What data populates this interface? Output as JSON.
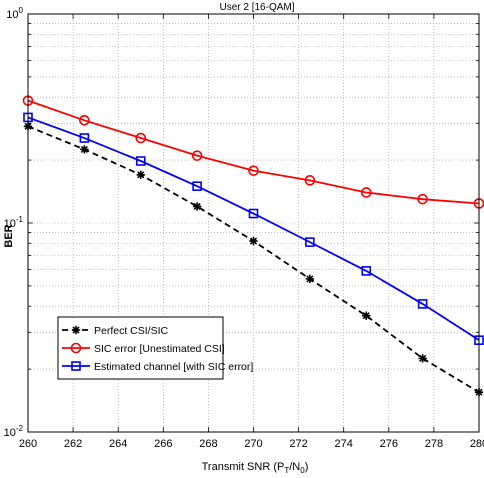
{
  "chart_data": {
    "type": "line",
    "title": "User 2 [16-QAM]",
    "xlabel": "Transmit SNR (P",
    "xlabel_sub1": "T",
    "xlabel_mid": "/N",
    "xlabel_sub2": "0",
    "xlabel_end": ")",
    "ylabel": "BER",
    "xlim": [
      260,
      280
    ],
    "ylim": [
      0.01,
      1
    ],
    "yscale": "log",
    "grid": true,
    "legend_position": "lower-left",
    "x_ticks": [
      "260",
      "262",
      "264",
      "266",
      "268",
      "270",
      "272",
      "274",
      "276",
      "278",
      "280"
    ],
    "y_ticks": [
      {
        "base": "10",
        "exp": "0",
        "value": 1
      },
      {
        "base": "10",
        "exp": "-1",
        "value": 0.1
      },
      {
        "base": "10",
        "exp": "-2",
        "value": 0.01
      }
    ],
    "x": [
      260,
      262.5,
      265,
      267.5,
      270,
      272.5,
      275,
      277.5,
      280
    ],
    "series": [
      {
        "name": "Perfect CSI/SIC",
        "color": "#000000",
        "style": "dashed",
        "marker": "star",
        "values": [
          0.29,
          0.225,
          0.17,
          0.12,
          0.082,
          0.054,
          0.036,
          0.0225,
          0.0155
        ]
      },
      {
        "name": "SIC error [Unestimated CSI]",
        "color": "#ff0000",
        "style": "solid",
        "marker": "circle",
        "values": [
          0.385,
          0.31,
          0.255,
          0.21,
          0.178,
          0.16,
          0.14,
          0.13,
          0.124
        ]
      },
      {
        "name": "Estimated channel [with SIC error]",
        "color": "#0000ff",
        "style": "solid",
        "marker": "square",
        "values": [
          0.32,
          0.255,
          0.198,
          0.15,
          0.111,
          0.081,
          0.059,
          0.041,
          0.0275
        ]
      }
    ]
  }
}
